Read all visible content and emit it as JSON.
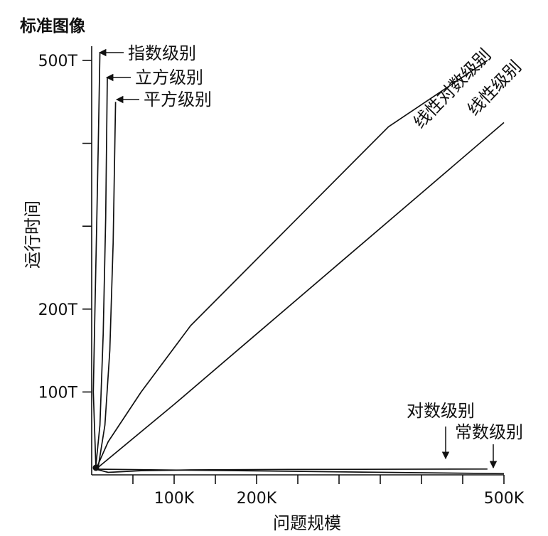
{
  "chart_data": {
    "type": "line",
    "title": "标准图像",
    "xlabel": "问题规模",
    "ylabel": "运行时间",
    "xlim": [
      0,
      500000
    ],
    "ylim": [
      0,
      500000000000000
    ],
    "x_ticks": [
      {
        "value": 50000,
        "label": ""
      },
      {
        "value": 100000,
        "label": "100K"
      },
      {
        "value": 150000,
        "label": ""
      },
      {
        "value": 200000,
        "label": "200K"
      },
      {
        "value": 250000,
        "label": ""
      },
      {
        "value": 300000,
        "label": ""
      },
      {
        "value": 350000,
        "label": ""
      },
      {
        "value": 400000,
        "label": ""
      },
      {
        "value": 450000,
        "label": ""
      },
      {
        "value": 500000,
        "label": "500K"
      }
    ],
    "y_ticks": [
      {
        "value": 100000000000000,
        "label": "100T"
      },
      {
        "value": 200000000000000,
        "label": "200T"
      },
      {
        "value": 300000000000000,
        "label": ""
      },
      {
        "value": 400000000000000,
        "label": ""
      },
      {
        "value": 500000000000000,
        "label": "500T"
      }
    ],
    "series": [
      {
        "name": "指数级别",
        "x": [
          0,
          2000,
          4000,
          6000,
          8000,
          10000
        ],
        "y": [
          0,
          100000000000000,
          200000000000000,
          300000000000000,
          400000000000000,
          510000000000000
        ]
      },
      {
        "name": "立方级别",
        "x": [
          0,
          5000,
          10000,
          14000,
          17000,
          19000
        ],
        "y": [
          0,
          10000000000000,
          60000000000000,
          170000000000000,
          310000000000000,
          480000000000000
        ]
      },
      {
        "name": "平方级别",
        "x": [
          0,
          8000,
          16000,
          22000,
          26000,
          29000
        ],
        "y": [
          0,
          10000000000000,
          60000000000000,
          150000000000000,
          280000000000000,
          450000000000000
        ]
      },
      {
        "name": "线性对数级别",
        "x": [
          0,
          20000,
          60000,
          120000,
          240000,
          360000,
          480000
        ],
        "y": [
          0,
          40000000000000,
          100000000000000,
          180000000000000,
          300000000000000,
          420000000000000,
          500000000000000
        ]
      },
      {
        "name": "线性级别",
        "x": [
          0,
          100000,
          200000,
          300000,
          400000,
          500000
        ],
        "y": [
          0,
          85000000000000,
          170000000000000,
          255000000000000,
          340000000000000,
          425000000000000
        ]
      },
      {
        "name": "对数级别",
        "x": [
          0,
          20000,
          60000,
          120000,
          240000,
          480000
        ],
        "y": [
          0,
          3000000000000,
          5000000000000,
          6000000000000,
          6500000000000,
          7000000000000
        ]
      },
      {
        "name": "常数级别",
        "x": [
          0,
          500000
        ],
        "y": [
          1500000000000,
          1500000000000
        ]
      }
    ],
    "labels": {
      "exponential": "指数级别",
      "cubic": "立方级别",
      "quadratic": "平方级别",
      "linearithmic": "线性对数级别",
      "linear": "线性级别",
      "logarithmic": "对数级别",
      "constant": "常数级别"
    }
  }
}
